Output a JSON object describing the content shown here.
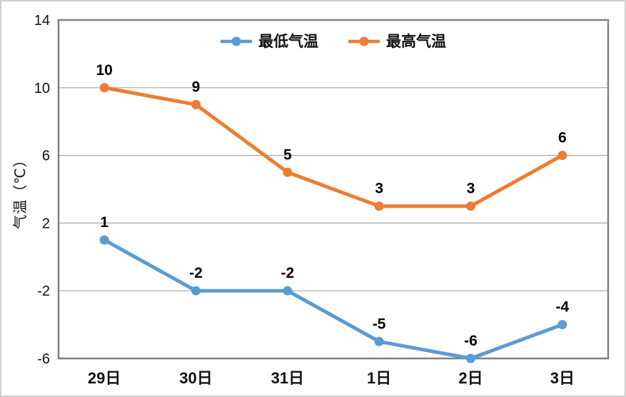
{
  "chart_data": {
    "type": "line",
    "title": "",
    "categories": [
      "29日",
      "30日",
      "31日",
      "1日",
      "2日",
      "3日"
    ],
    "series": [
      {
        "name": "最低气温",
        "color": "#5B9BD5",
        "values": [
          1,
          -2,
          -2,
          -5,
          -6,
          -4
        ]
      },
      {
        "name": "最高气温",
        "color": "#ED7D31",
        "values": [
          10,
          9,
          5,
          3,
          3,
          6
        ]
      }
    ],
    "xlabel": "",
    "ylabel": "气温（℃）",
    "ylim": [
      -6,
      14
    ],
    "yticks": [
      -6,
      -2,
      2,
      6,
      10,
      14
    ],
    "grid": true,
    "data_labels": true,
    "legend_position": "top-center"
  },
  "colors": {
    "series_min": "#5B9BD5",
    "series_max": "#ED7D31",
    "gridline": "#A6A6A6",
    "plot_border": "#808080",
    "text": "#111111",
    "outer_border": "#cfcfcf",
    "background": "#ffffff"
  }
}
